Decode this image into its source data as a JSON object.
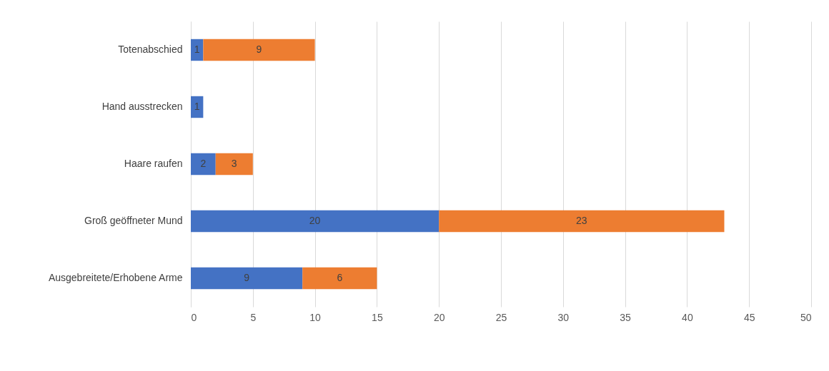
{
  "chart_data": {
    "type": "bar",
    "orientation": "horizontal",
    "stacked": true,
    "categories": [
      "Totenabschied",
      "Hand ausstrecken",
      "Haare raufen",
      "Groß geöffneter Mund",
      "Ausgebreitete/Erhobene Arme"
    ],
    "series": [
      {
        "color": "#4472c4",
        "values": [
          1,
          1,
          2,
          20,
          9
        ]
      },
      {
        "color": "#ed7d31",
        "values": [
          9,
          null,
          3,
          23,
          6
        ]
      }
    ],
    "xlim": [
      0,
      50
    ],
    "xticks": [
      0,
      5,
      10,
      15,
      20,
      25,
      30,
      35,
      40,
      45,
      50
    ],
    "grid": "x",
    "data_labels": true
  }
}
